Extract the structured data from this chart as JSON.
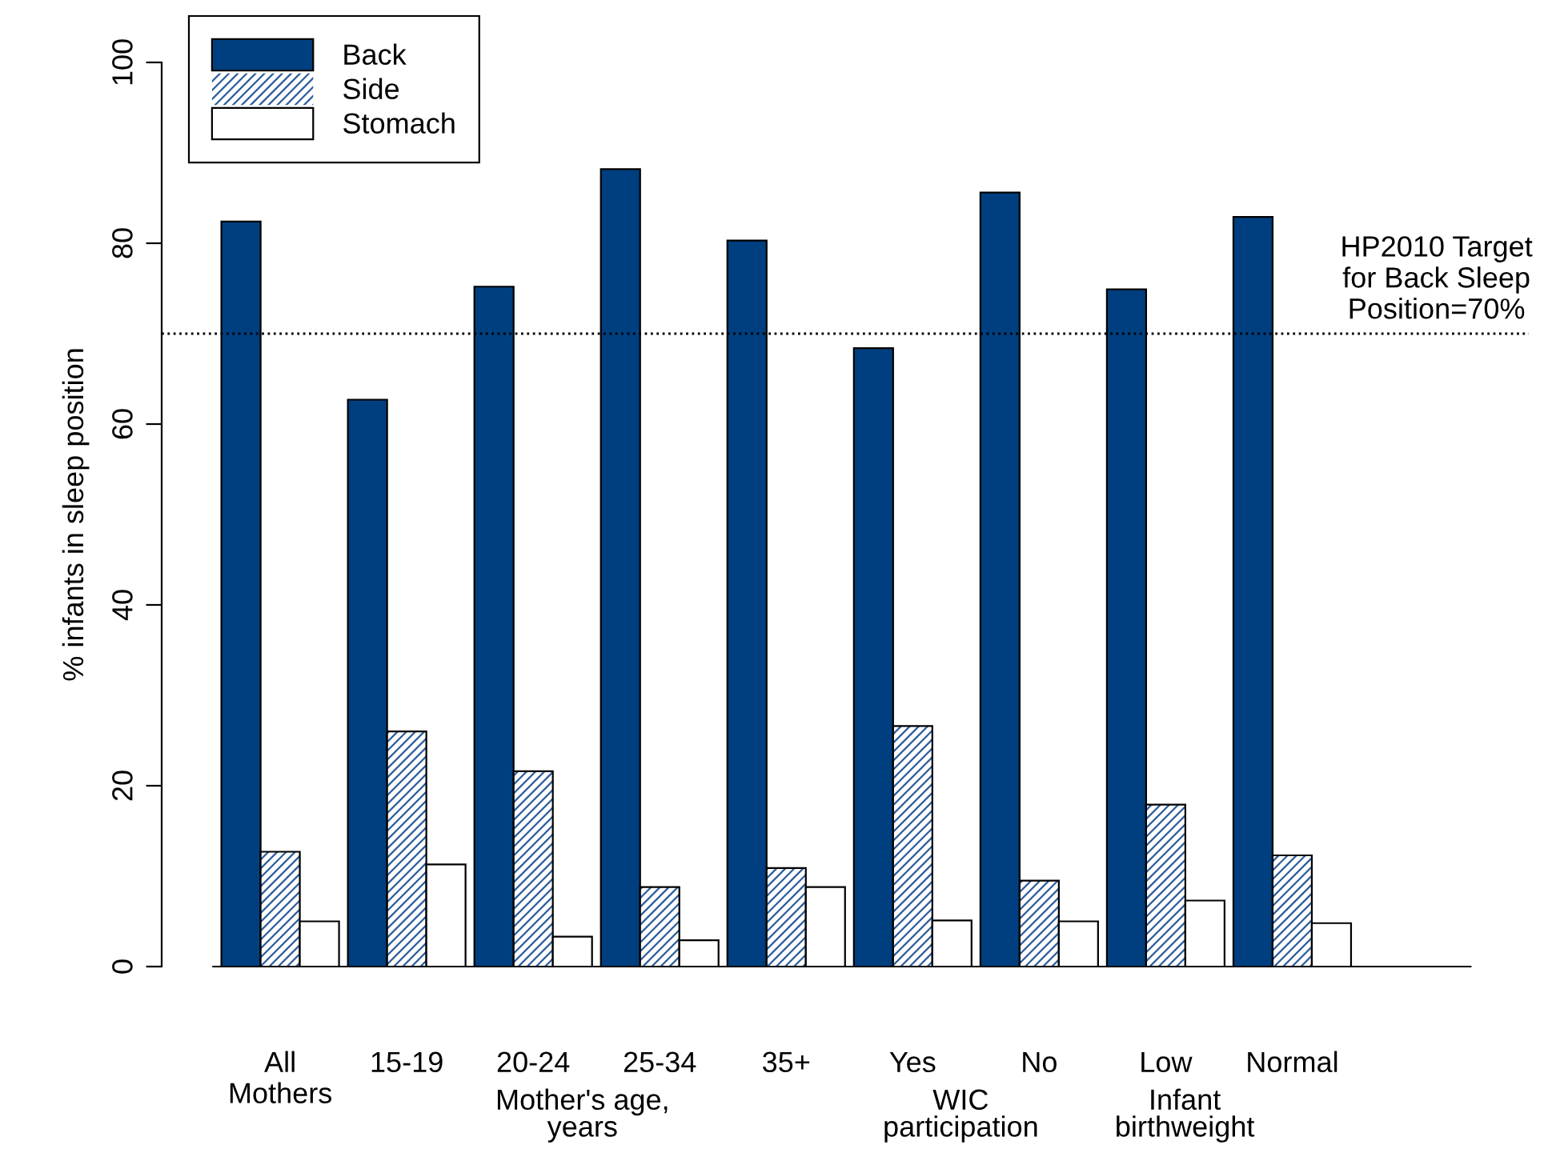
{
  "chart_data": {
    "type": "bar",
    "ylabel": "% infants in sleep position",
    "categories": [
      "All\nMothers",
      "15-19",
      "20-24",
      "25-34",
      "35+",
      "Yes",
      "No",
      "Low",
      "Normal"
    ],
    "series": [
      {
        "name": "Back",
        "color": "#003f7f",
        "values": [
          82.4,
          62.7,
          75.2,
          88.2,
          80.3,
          68.4,
          85.6,
          74.9,
          82.9
        ]
      },
      {
        "name": "Side",
        "color": "#2a5c9c",
        "values": [
          12.7,
          26.0,
          21.6,
          8.8,
          10.9,
          26.6,
          9.5,
          17.9,
          12.3
        ]
      },
      {
        "name": "Stomach",
        "color": "#ffffff",
        "values": [
          5.0,
          11.3,
          3.3,
          2.9,
          8.8,
          5.1,
          5.0,
          7.3,
          4.8
        ]
      }
    ],
    "ylim": [
      0,
      100
    ],
    "yticks": [
      0,
      20,
      40,
      60,
      80,
      100
    ],
    "ref_lines": [
      {
        "axis": "y",
        "value": 70,
        "label": "HP2010 Target\nfor Back Sleep\nPosition=70%",
        "color": "#000000",
        "line_style": "dotted"
      }
    ],
    "annotations": [
      "Mother's age,\nyears",
      "WIC\nparticipation",
      "Infant\nbirthweight"
    ],
    "legend": "top left",
    "grid": false
  }
}
